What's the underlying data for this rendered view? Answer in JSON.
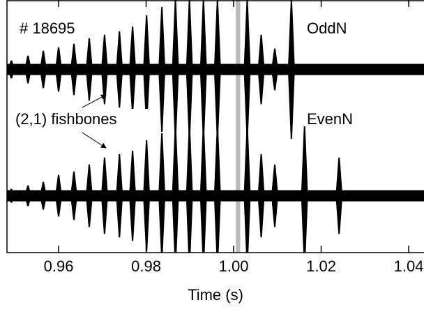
{
  "chart_data": {
    "type": "burst",
    "annotation_shot": "# 18695",
    "annotation_mode": "(2,1) fishbones",
    "xlabel": "Time (s)",
    "xlim": [
      0.9482,
      1.0435
    ],
    "xticks": [
      0.96,
      0.98,
      {
        "value": 1,
        "label": "1.00"
      },
      1.02,
      1.04
    ],
    "ylim": [
      -1,
      1
    ],
    "shaded_x": [
      1.0005,
      1.0015
    ],
    "shaded_color": "#bbbbbb",
    "series": [
      {
        "name": "OddN",
        "color": "#000000",
        "x": [
          0.9492,
          0.953,
          0.9565,
          0.96,
          0.9635,
          0.967,
          0.9705,
          0.9739,
          0.9769,
          0.9801,
          0.9836,
          0.9867,
          0.9899,
          0.9931,
          0.9963,
          1.0031,
          1.0063,
          1.0094,
          1.0132
        ],
        "values": [
          0.13,
          0.2,
          0.27,
          0.32,
          0.37,
          0.45,
          0.5,
          0.55,
          0.62,
          0.78,
          0.9,
          1,
          1,
          1,
          1,
          1,
          0.5,
          0.3,
          1
        ]
      },
      {
        "name": "EvenN",
        "color": "#000000",
        "x": [
          0.9492,
          0.953,
          0.9565,
          0.96,
          0.9635,
          0.967,
          0.9705,
          0.9739,
          0.9769,
          0.9801,
          0.9836,
          0.9867,
          0.9899,
          0.9931,
          0.9963,
          1.0031,
          1.0063,
          1.0094,
          1.0162,
          1.0241
        ],
        "values": [
          0.1,
          0.15,
          0.2,
          0.3,
          0.35,
          0.45,
          0.55,
          0.6,
          0.65,
          0.8,
          0.9,
          1,
          1,
          1,
          1,
          1,
          0.6,
          0.45,
          1,
          0.55
        ]
      }
    ]
  }
}
